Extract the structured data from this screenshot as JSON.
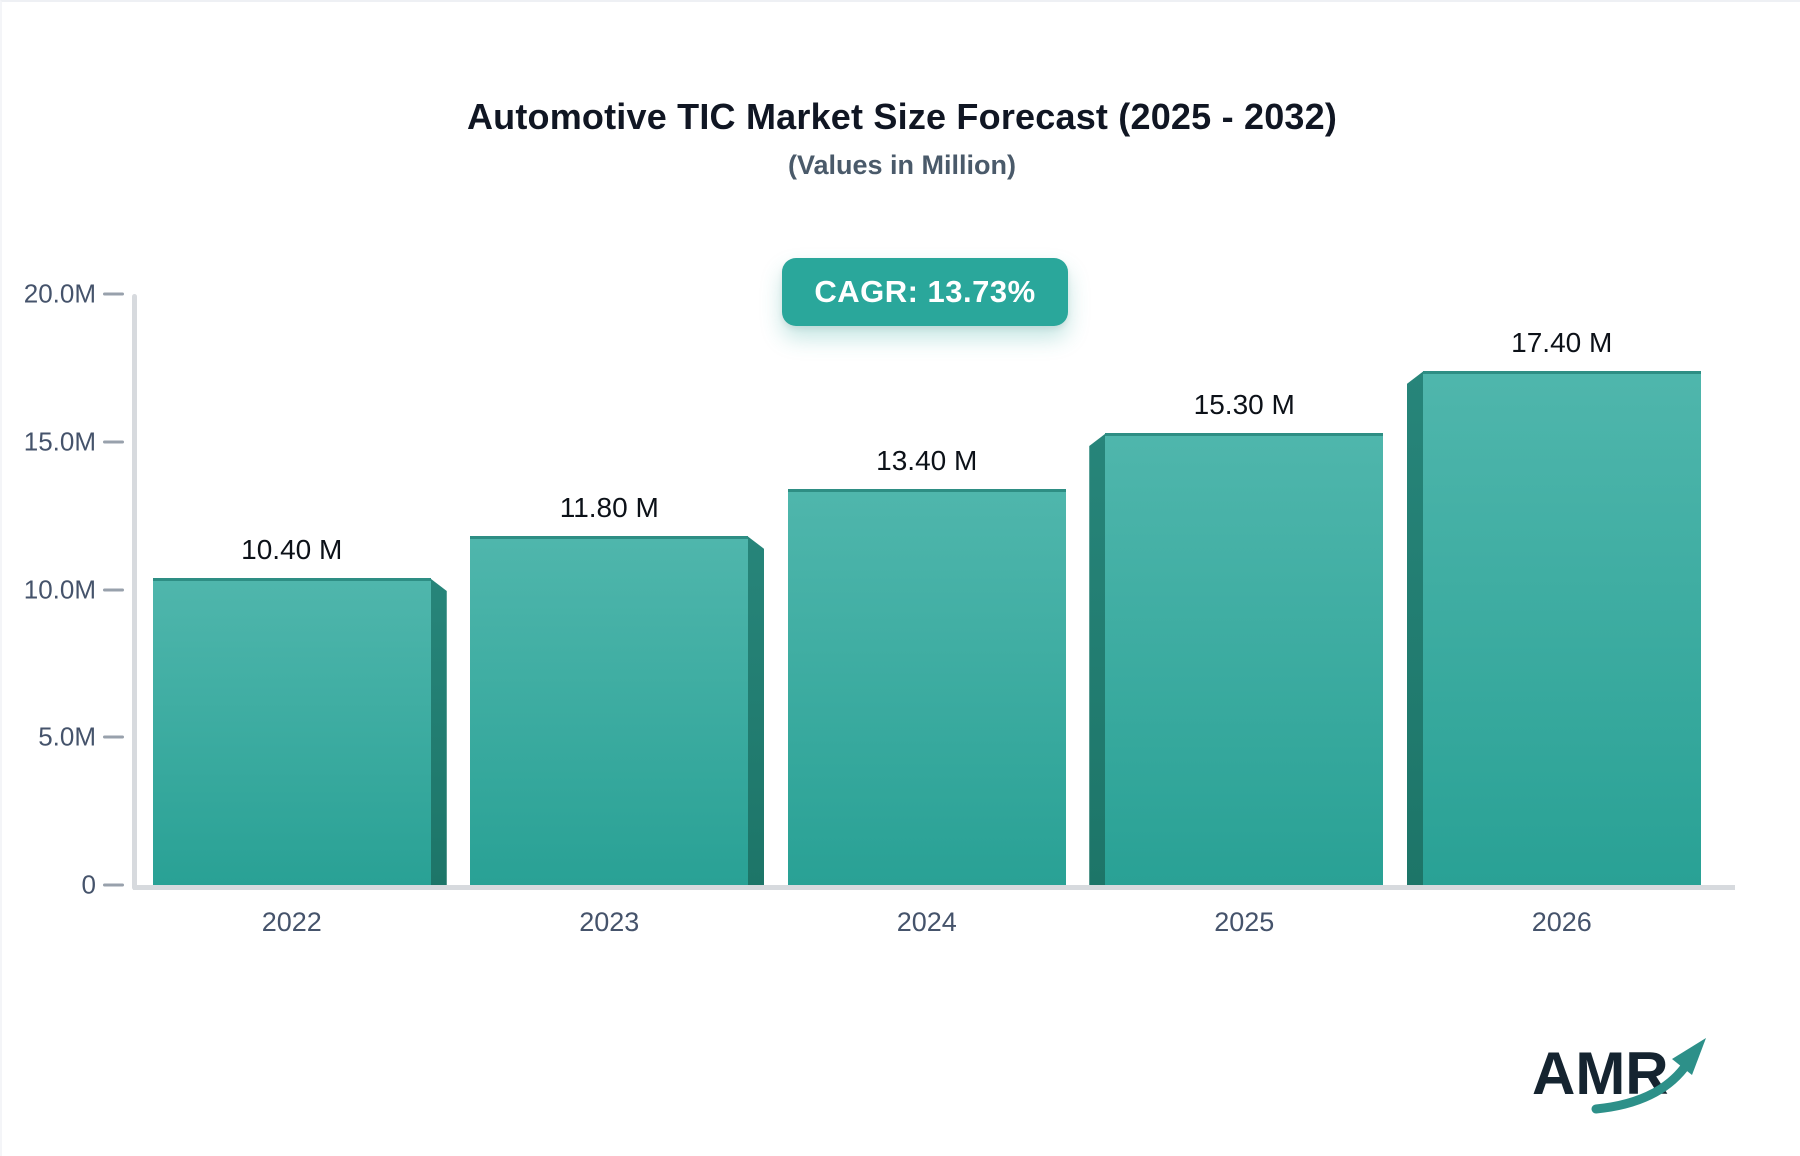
{
  "header": {
    "title": "Automotive TIC Market Size Forecast (2025 - 2032)",
    "subtitle": "(Values in Million)",
    "cagr_badge": "CAGR: 13.73%"
  },
  "chart_data": {
    "type": "bar",
    "title": "Automotive TIC Market Size Forecast (2025 - 2032)",
    "subtitle": "(Values in Million)",
    "unit": "Million",
    "categories": [
      "2022",
      "2023",
      "2024",
      "2025",
      "2026"
    ],
    "values": [
      10.4,
      11.8,
      13.4,
      15.3,
      17.4
    ],
    "value_labels": [
      "10.40 M",
      "11.80 M",
      "13.40 M",
      "15.30 M",
      "17.40 M"
    ],
    "cagr": "13.73%",
    "ylim": [
      0,
      20
    ],
    "yticks": [
      {
        "label": "20.0M",
        "value": 20
      },
      {
        "label": "15.0M",
        "value": 15
      },
      {
        "label": "10.0M",
        "value": 10
      },
      {
        "label": "5.0M",
        "value": 5
      },
      {
        "label": "0",
        "value": 0
      }
    ],
    "grid": false,
    "legend_position": "none",
    "bar_style": "3d-gradient"
  },
  "colors": {
    "bar_top": "#4fb6ac",
    "bar_bottom": "#29a195",
    "bar_side": "#1e7b70",
    "bar_top_edge": "#2e8e84",
    "badge_bg": "#2aa79b",
    "axis_line": "#d7dade",
    "tick": "#98a1ac",
    "axis_text": "#45536b",
    "title_text": "#101623",
    "subtitle_text": "#4a5a6a",
    "value_text": "#0c1118",
    "logo_text": "#152430",
    "logo_arrow": "#2d9089"
  },
  "logo": {
    "text": "AMR"
  }
}
